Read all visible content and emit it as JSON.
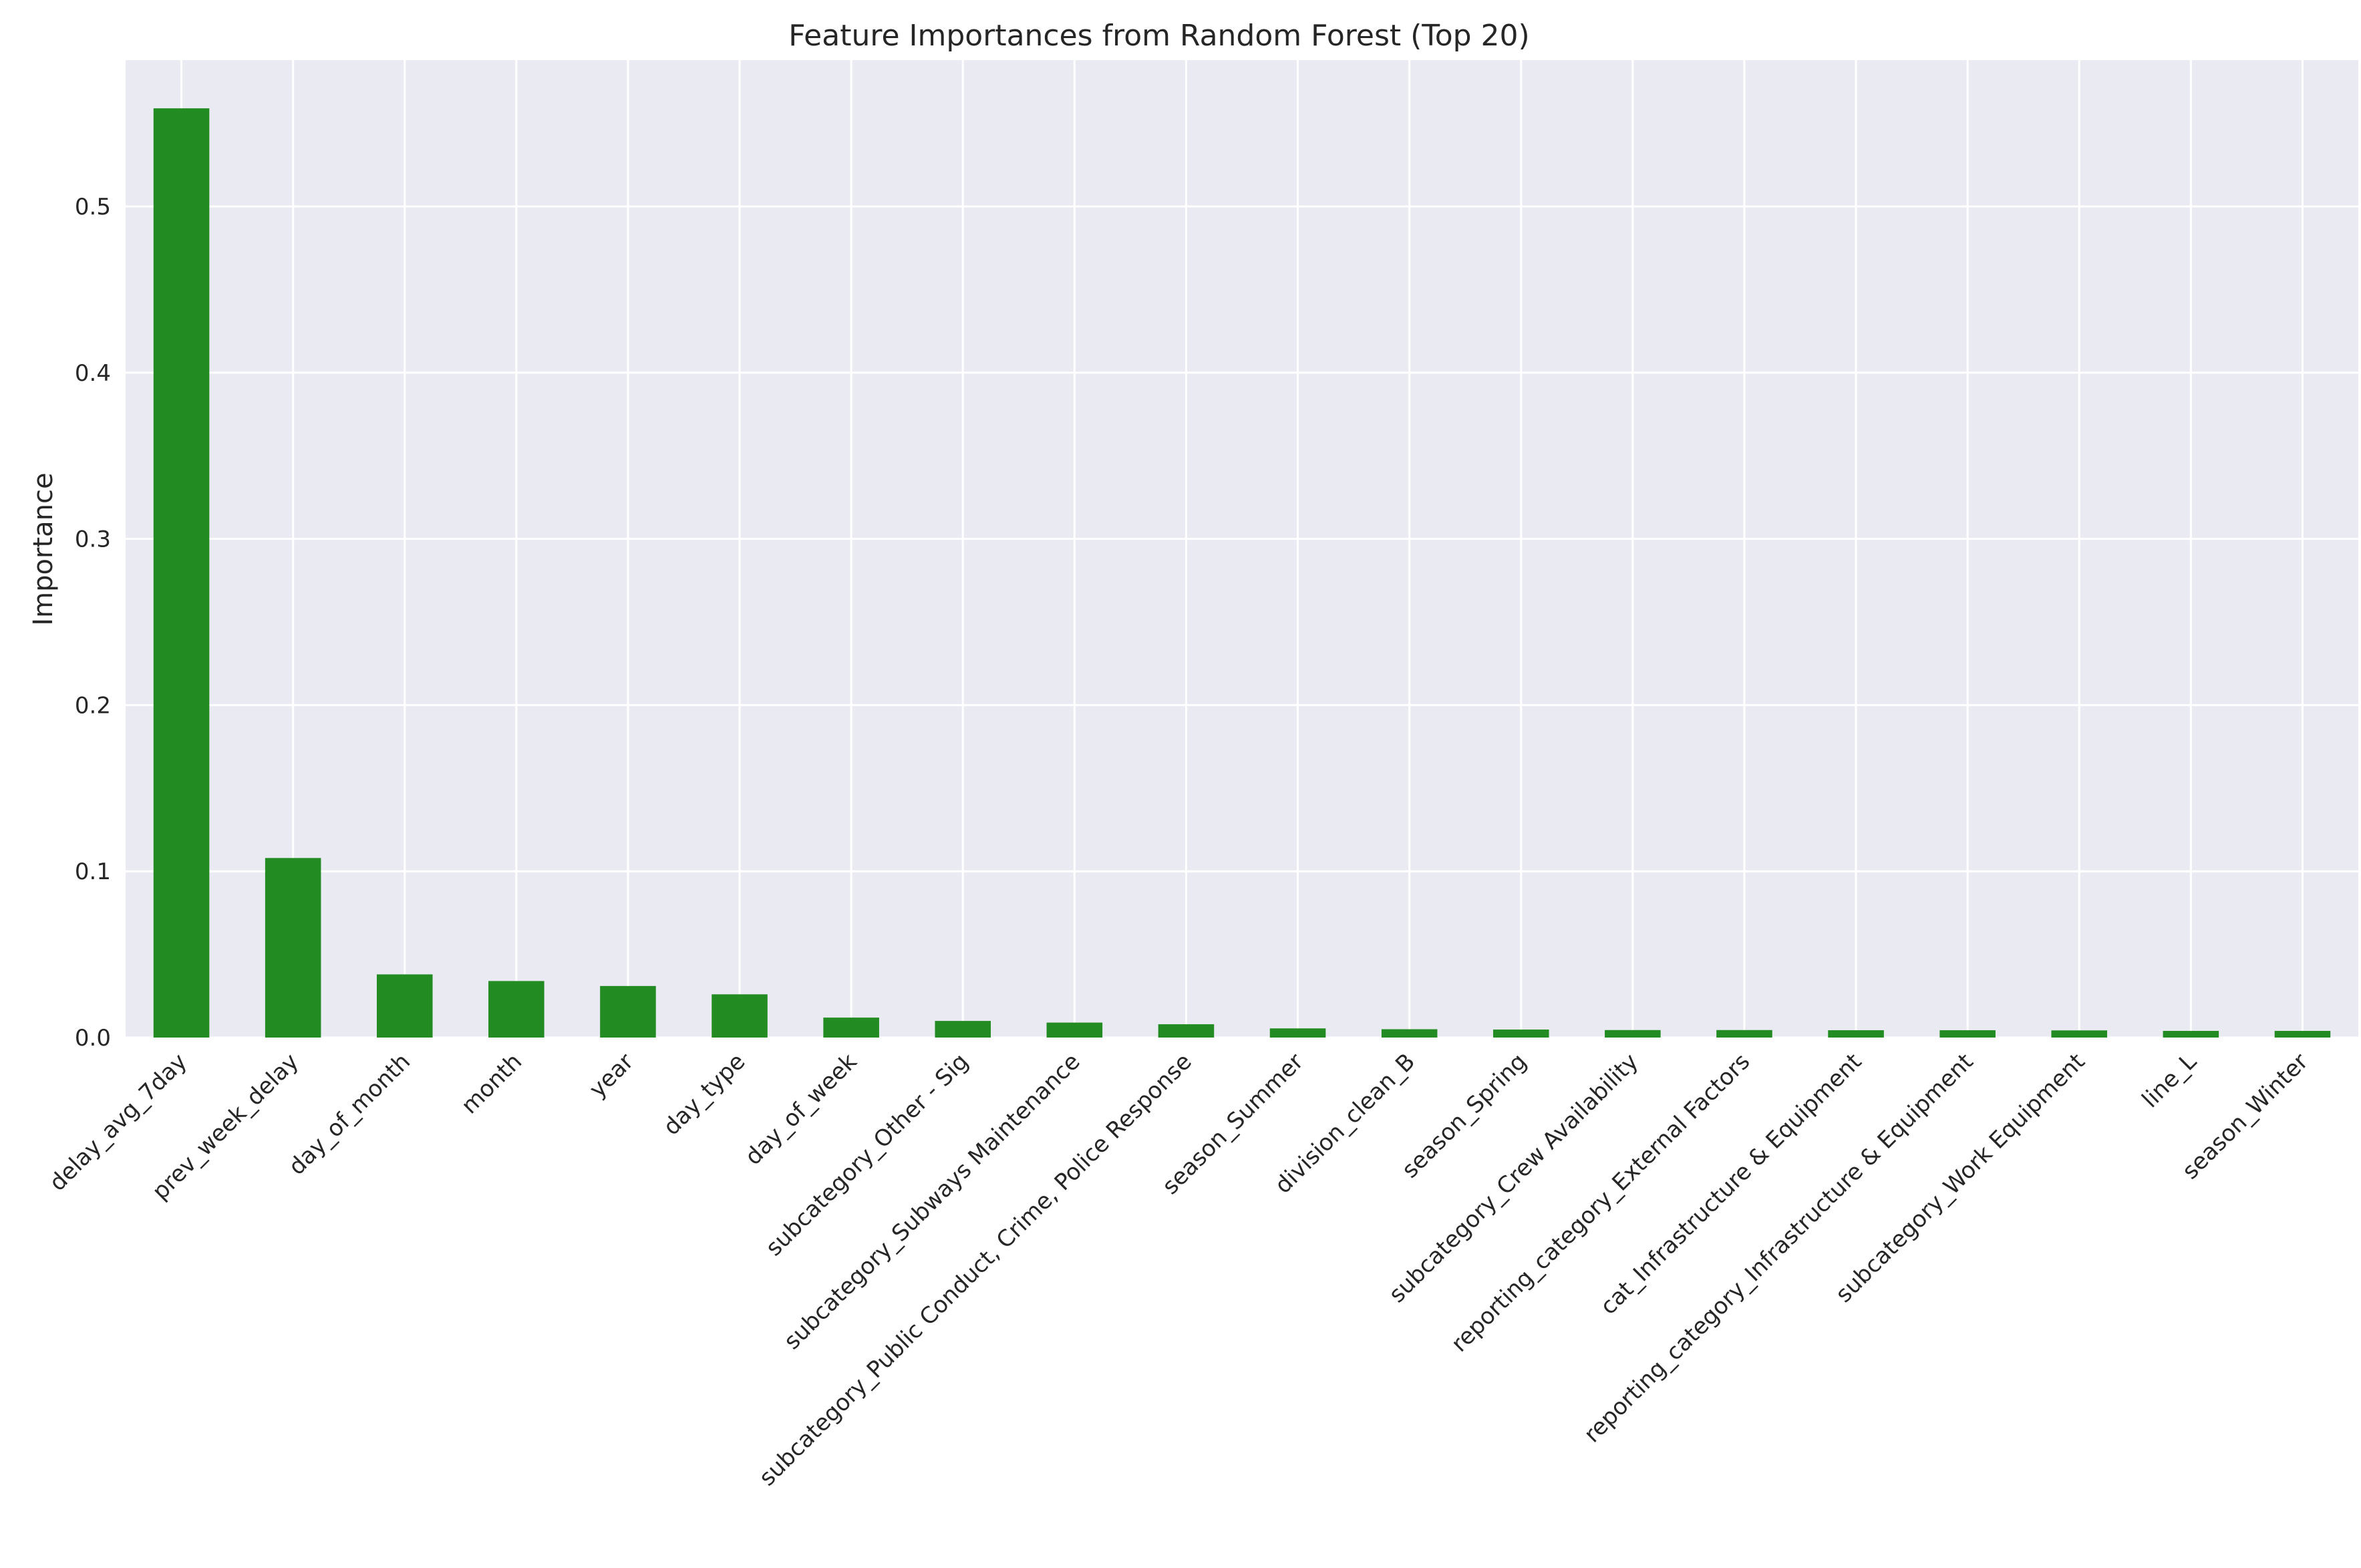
{
  "chart_data": {
    "type": "bar",
    "title": "Feature Importances from Random Forest (Top 20)",
    "xlabel": "",
    "ylabel": "Importance",
    "ylim": [
      0,
      0.588
    ],
    "yticks": [
      "0.0",
      "0.1",
      "0.2",
      "0.3",
      "0.4",
      "0.5"
    ],
    "grid": true,
    "bar_color": "#228b22",
    "background_color": "#eaeaf2",
    "categories": [
      "delay_avg_7day",
      "prev_week_delay",
      "day_of_month",
      "month",
      "year",
      "day_type",
      "day_of_week",
      "subcategory_Other - Sig",
      "subcategory_Subways Maintenance",
      "subcategory_Public Conduct, Crime, Police Response",
      "season_Summer",
      "division_clean_B",
      "season_Spring",
      "subcategory_Crew Availability",
      "reporting_category_External Factors",
      "cat_Infrastructure & Equipment",
      "reporting_category_Infrastructure & Equipment",
      "subcategory_Work Equipment",
      "line_L",
      "season_Winter"
    ],
    "values": [
      0.559,
      0.108,
      0.038,
      0.034,
      0.031,
      0.026,
      0.012,
      0.01,
      0.009,
      0.008,
      0.0055,
      0.005,
      0.0048,
      0.0045,
      0.0045,
      0.0044,
      0.0044,
      0.0043,
      0.004,
      0.004
    ]
  }
}
